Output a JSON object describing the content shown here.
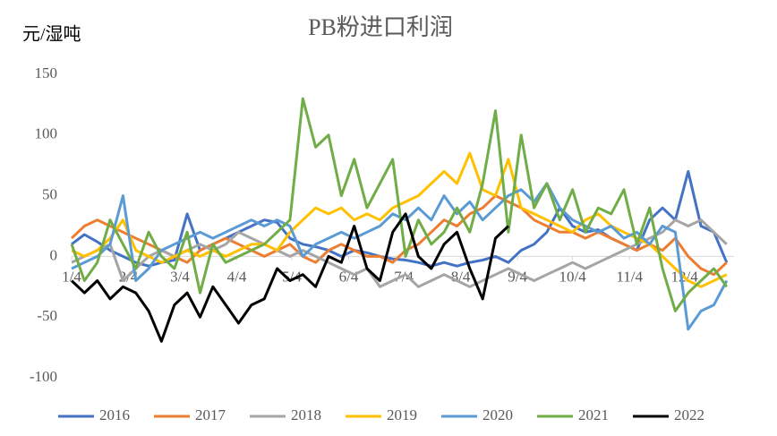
{
  "chart_data": {
    "type": "line",
    "title": "PB粉进口利润",
    "y_label": "元/湿吨",
    "x": [
      4,
      11,
      18,
      25,
      32,
      39,
      46,
      53,
      60,
      67,
      74,
      81,
      88,
      95,
      102,
      109,
      116,
      123,
      130,
      137,
      144,
      151,
      158,
      165,
      172,
      179,
      186,
      193,
      200,
      207,
      214,
      221,
      228,
      235,
      242,
      249,
      256,
      263,
      270,
      277,
      284,
      291,
      298,
      305,
      312,
      319,
      326,
      333,
      340,
      347,
      354,
      361
    ],
    "xlim": [
      4,
      365
    ],
    "xticks": [
      {
        "value": 4,
        "label": "1/4"
      },
      {
        "value": 35,
        "label": "2/4"
      },
      {
        "value": 63,
        "label": "3/4"
      },
      {
        "value": 94,
        "label": "4/4"
      },
      {
        "value": 124,
        "label": "5/4"
      },
      {
        "value": 155,
        "label": "6/4"
      },
      {
        "value": 185,
        "label": "7/4"
      },
      {
        "value": 216,
        "label": "8/4"
      },
      {
        "value": 247,
        "label": "9/4"
      },
      {
        "value": 277,
        "label": "10/4"
      },
      {
        "value": 308,
        "label": "11/4"
      },
      {
        "value": 338,
        "label": "12/4"
      }
    ],
    "ylim": [
      -100,
      150
    ],
    "yticks": [
      -100,
      -50,
      0,
      50,
      100,
      150
    ],
    "grid": false,
    "legend": "bottom",
    "series": [
      {
        "name": "2016",
        "color": "#4472c4",
        "values": [
          10,
          18,
          12,
          5,
          0,
          -5,
          -8,
          -5,
          -3,
          35,
          5,
          10,
          15,
          20,
          25,
          30,
          28,
          15,
          10,
          8,
          5,
          0,
          5,
          3,
          0,
          -2,
          -3,
          -5,
          -8,
          -5,
          -8,
          -5,
          -3,
          0,
          -5,
          5,
          10,
          20,
          40,
          25,
          20,
          22,
          15,
          10,
          5,
          30,
          40,
          30,
          70,
          25,
          20,
          -5
        ]
      },
      {
        "name": "2017",
        "color": "#ed7d31",
        "values": [
          15,
          25,
          30,
          25,
          20,
          15,
          10,
          5,
          0,
          -5,
          5,
          10,
          15,
          10,
          5,
          0,
          5,
          10,
          0,
          -5,
          5,
          10,
          5,
          0,
          0,
          -5,
          5,
          10,
          20,
          30,
          25,
          35,
          40,
          50,
          45,
          40,
          30,
          25,
          20,
          20,
          15,
          20,
          15,
          10,
          5,
          10,
          5,
          15,
          0,
          -10,
          -15,
          -5
        ]
      },
      {
        "name": "2018",
        "color": "#a5a5a5",
        "values": [
          -5,
          0,
          5,
          10,
          -20,
          -10,
          0,
          5,
          0,
          5,
          10,
          5,
          10,
          20,
          15,
          10,
          5,
          0,
          5,
          0,
          -5,
          -10,
          -15,
          -10,
          -25,
          -20,
          -15,
          -25,
          -20,
          -15,
          -20,
          -25,
          -20,
          -15,
          -10,
          -15,
          -20,
          -15,
          -10,
          -5,
          -10,
          -5,
          0,
          5,
          10,
          15,
          20,
          30,
          25,
          30,
          20,
          10
        ]
      },
      {
        "name": "2019",
        "color": "#ffc000",
        "values": [
          5,
          0,
          5,
          15,
          30,
          5,
          0,
          -5,
          0,
          5,
          0,
          5,
          0,
          5,
          10,
          10,
          5,
          20,
          30,
          40,
          35,
          40,
          30,
          35,
          30,
          40,
          45,
          50,
          60,
          70,
          60,
          85,
          55,
          50,
          80,
          40,
          35,
          30,
          25,
          20,
          30,
          35,
          25,
          20,
          15,
          10,
          0,
          -10,
          -20,
          -25,
          -20,
          -15
        ]
      },
      {
        "name": "2020",
        "color": "#5b9bd5",
        "values": [
          -10,
          -5,
          0,
          10,
          50,
          -20,
          -10,
          5,
          10,
          15,
          20,
          15,
          20,
          25,
          30,
          25,
          30,
          25,
          0,
          10,
          15,
          20,
          15,
          20,
          25,
          35,
          30,
          40,
          30,
          50,
          35,
          45,
          30,
          40,
          50,
          55,
          45,
          60,
          40,
          30,
          25,
          20,
          25,
          15,
          20,
          10,
          25,
          20,
          -60,
          -45,
          -40,
          -20
        ]
      },
      {
        "name": "2021",
        "color": "#70ad47",
        "values": [
          10,
          -20,
          -5,
          30,
          10,
          -10,
          20,
          0,
          -10,
          20,
          -30,
          10,
          -5,
          0,
          5,
          10,
          20,
          30,
          130,
          90,
          100,
          50,
          80,
          40,
          60,
          80,
          0,
          30,
          10,
          20,
          40,
          20,
          60,
          120,
          20,
          100,
          40,
          60,
          30,
          55,
          20,
          40,
          35,
          55,
          10,
          40,
          -10,
          -45,
          -30,
          -20,
          -10,
          -25
        ]
      },
      {
        "name": "2022",
        "color": "#000000",
        "values": [
          -20,
          -30,
          -20,
          -35,
          -25,
          -30,
          -45,
          -70,
          -40,
          -30,
          -50,
          -25,
          -40,
          -55,
          -40,
          -35,
          -10,
          -20,
          -15,
          -25,
          0,
          -5,
          25,
          -10,
          -20,
          20,
          35,
          0,
          -10,
          10,
          20,
          -10,
          -35,
          15,
          25,
          null,
          null,
          null,
          null,
          null,
          null,
          null,
          null,
          null,
          null,
          null,
          null,
          null,
          null,
          null,
          null,
          null
        ]
      }
    ]
  }
}
